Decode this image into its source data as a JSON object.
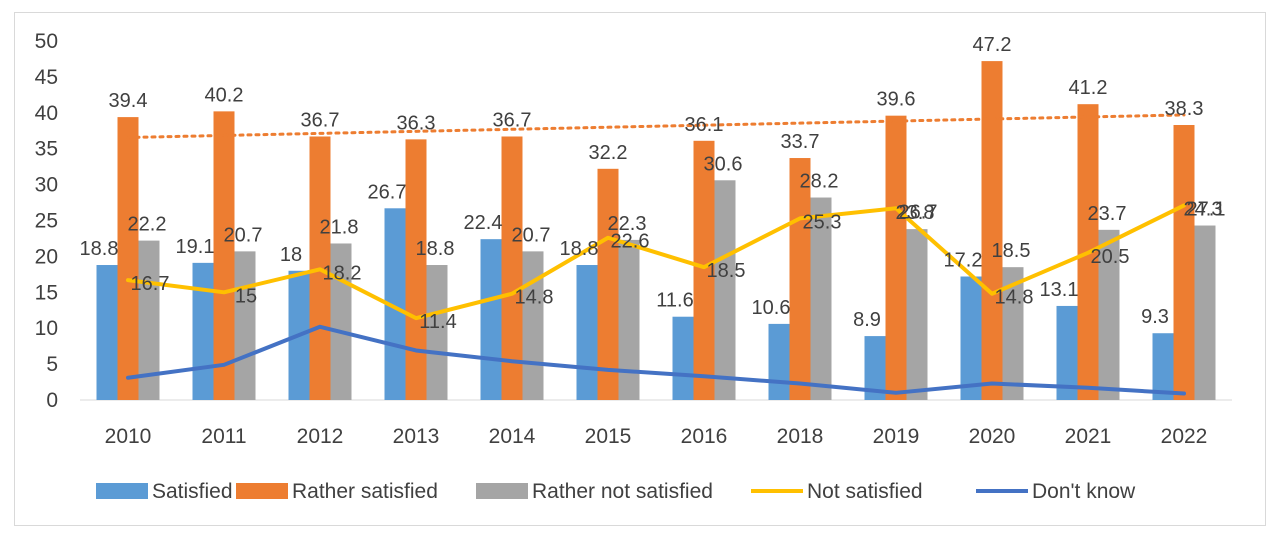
{
  "chart_data": {
    "type": "bar",
    "title": "",
    "xlabel": "",
    "ylabel": "",
    "categories": [
      "2010",
      "2011",
      "2012",
      "2013",
      "2014",
      "2015",
      "2016",
      "2018",
      "2019",
      "2020",
      "2021",
      "2022"
    ],
    "ylim": [
      0,
      50
    ],
    "yticks": [
      0,
      5,
      10,
      15,
      20,
      25,
      30,
      35,
      40,
      45,
      50
    ],
    "grid": false,
    "legend_position": "bottom",
    "series": [
      {
        "name": "Satisfied",
        "kind": "bar",
        "color": "#5b9bd5",
        "values": [
          18.8,
          19.1,
          18,
          26.7,
          22.4,
          18.8,
          11.6,
          10.6,
          8.9,
          17.2,
          13.1,
          9.3
        ]
      },
      {
        "name": "Rather satisfied",
        "kind": "bar",
        "color": "#ed7d31",
        "values": [
          39.4,
          40.2,
          36.7,
          36.3,
          36.7,
          32.2,
          36.1,
          33.7,
          39.6,
          47.2,
          41.2,
          38.3
        ]
      },
      {
        "name": "Rather not satisfied",
        "kind": "bar",
        "color": "#a5a5a5",
        "values": [
          22.2,
          20.7,
          21.8,
          18.8,
          20.7,
          22.3,
          30.6,
          28.2,
          23.8,
          18.5,
          23.7,
          24.3
        ]
      },
      {
        "name": "Not satisfied",
        "kind": "line",
        "color": "#ffc000",
        "values": [
          16.7,
          15,
          18.2,
          11.4,
          14.8,
          22.6,
          18.5,
          25.3,
          26.7,
          14.8,
          20.5,
          27.1
        ]
      },
      {
        "name": "Don't know",
        "kind": "line",
        "color": "#4472c4",
        "values": [
          3.1,
          4.9,
          10.2,
          6.9,
          5.4,
          4.2,
          3.3,
          2.3,
          1.0,
          2.3,
          1.7,
          0.9
        ]
      }
    ],
    "trendline": {
      "of": "Rather satisfied",
      "style": "dotted",
      "color": "#ed7d31"
    }
  }
}
